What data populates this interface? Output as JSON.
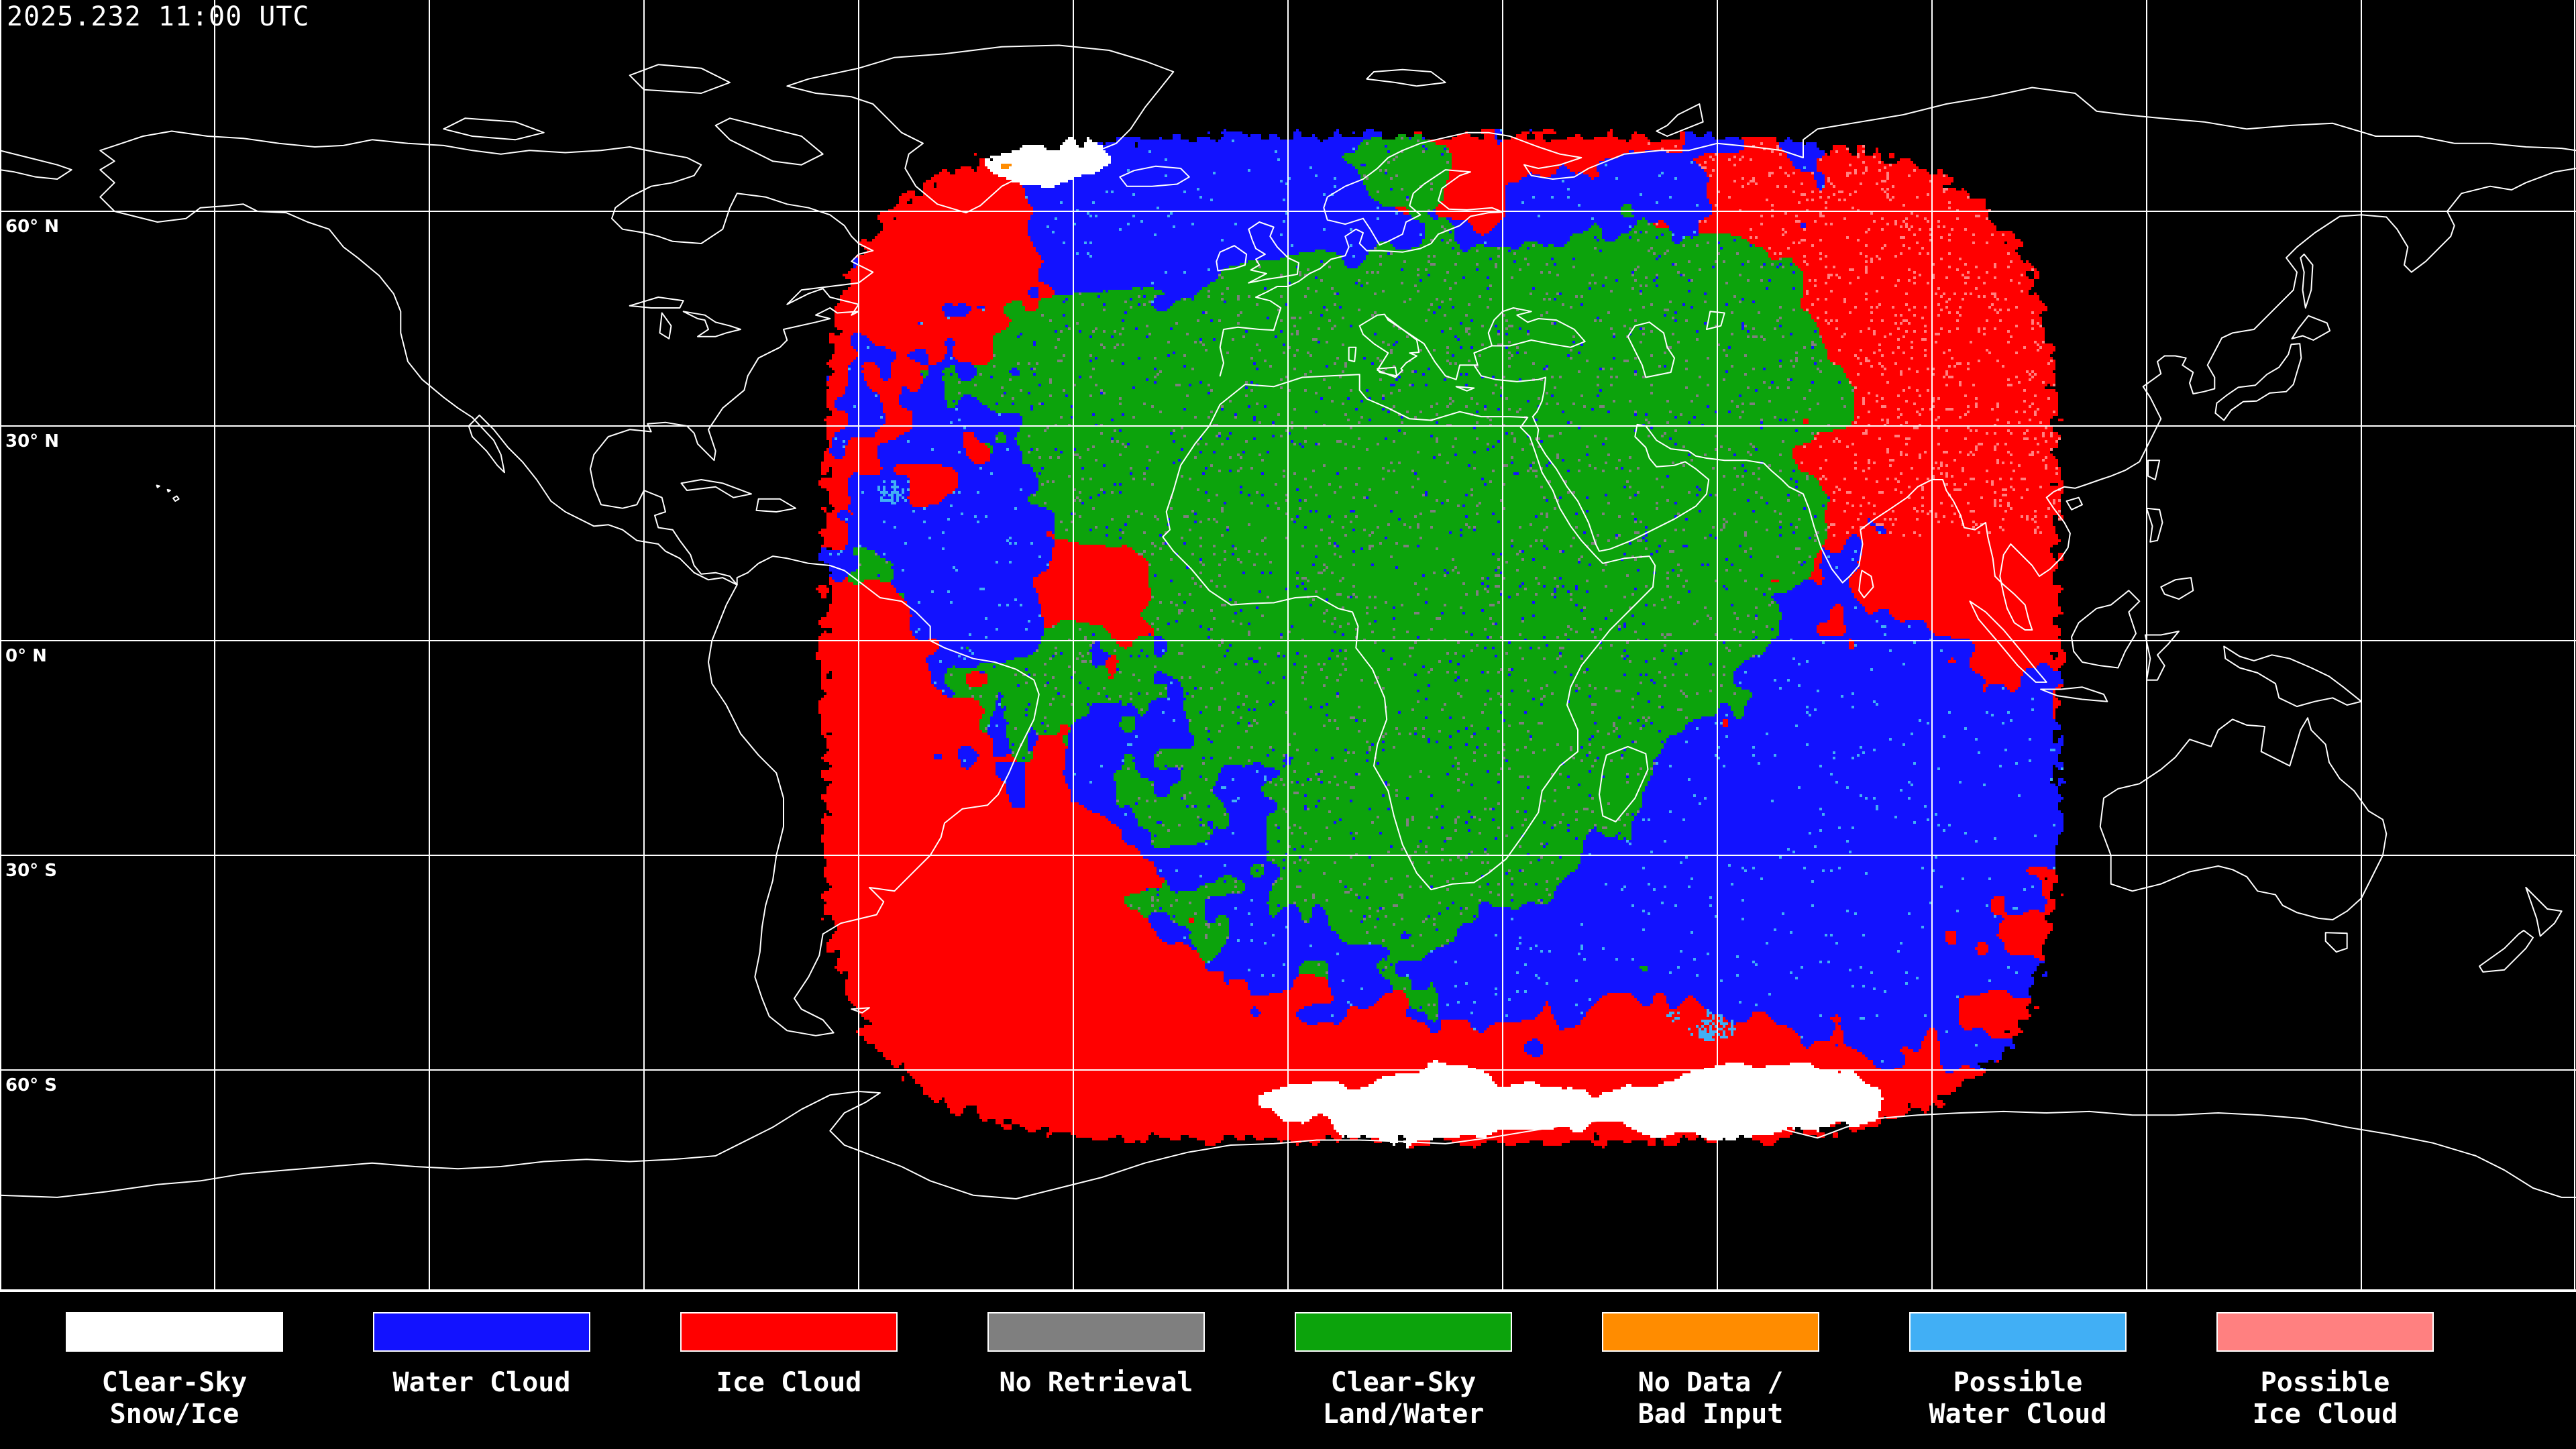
{
  "header": {
    "timestamp": "2025.232 11:00 UTC"
  },
  "map": {
    "projection": "equirectangular",
    "grid_interval_deg": 30,
    "background_color": "#000000",
    "gridline_color": "#FFFFFF",
    "coastline_color": "#FFFFFF",
    "latitude_labels": [
      {
        "text": "60° N",
        "lat": 60
      },
      {
        "text": "30° N",
        "lat": 30
      },
      {
        "text": "0° N",
        "lat": 0
      },
      {
        "text": "30° S",
        "lat": -30
      },
      {
        "text": "60° S",
        "lat": -60
      }
    ]
  },
  "legend": {
    "items": [
      {
        "id": "clear_sky_snow_ice",
        "label_lines": [
          "Clear-Sky",
          "Snow/Ice"
        ],
        "color": "#FFFFFF"
      },
      {
        "id": "water_cloud",
        "label_lines": [
          "Water Cloud"
        ],
        "color": "#1212FF"
      },
      {
        "id": "ice_cloud",
        "label_lines": [
          "Ice Cloud"
        ],
        "color": "#FF0000"
      },
      {
        "id": "no_retrieval",
        "label_lines": [
          "No Retrieval"
        ],
        "color": "#7F7F7F"
      },
      {
        "id": "clear_sky_land_water",
        "label_lines": [
          "Clear-Sky",
          "Land/Water"
        ],
        "color": "#0CA30C"
      },
      {
        "id": "no_data_bad_input",
        "label_lines": [
          "No Data /",
          "Bad Input"
        ],
        "color": "#FF8C00"
      },
      {
        "id": "possible_water_cloud",
        "label_lines": [
          "Possible",
          "Water Cloud"
        ],
        "color": "#41AFF5"
      },
      {
        "id": "possible_ice_cloud",
        "label_lines": [
          "Possible",
          "Ice Cloud"
        ],
        "color": "#FF8080"
      }
    ]
  }
}
